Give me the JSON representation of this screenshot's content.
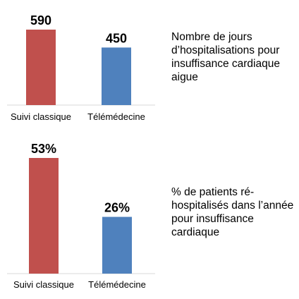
{
  "colors": {
    "suivi": "#c0504d",
    "tele": "#4f81bd",
    "baseline": "#d9d9d9"
  },
  "chart_data": [
    {
      "type": "bar",
      "categories": [
        "Suivi classique",
        "Télémédecine"
      ],
      "values": [
        590,
        450
      ],
      "value_labels": [
        "590",
        "450"
      ],
      "ylim": [
        0,
        590
      ],
      "title": "Nombre de jours d’hospitalisations pour insuffisance cardiaque aigue"
    },
    {
      "type": "bar",
      "categories": [
        "Suivi classique",
        "Télémédecine"
      ],
      "values": [
        53,
        26
      ],
      "value_labels": [
        "53%",
        "26%"
      ],
      "ylim": [
        0,
        53
      ],
      "title": "% de patients ré-hospitalisés dans l’année pour insuffisance cardiaque"
    }
  ]
}
